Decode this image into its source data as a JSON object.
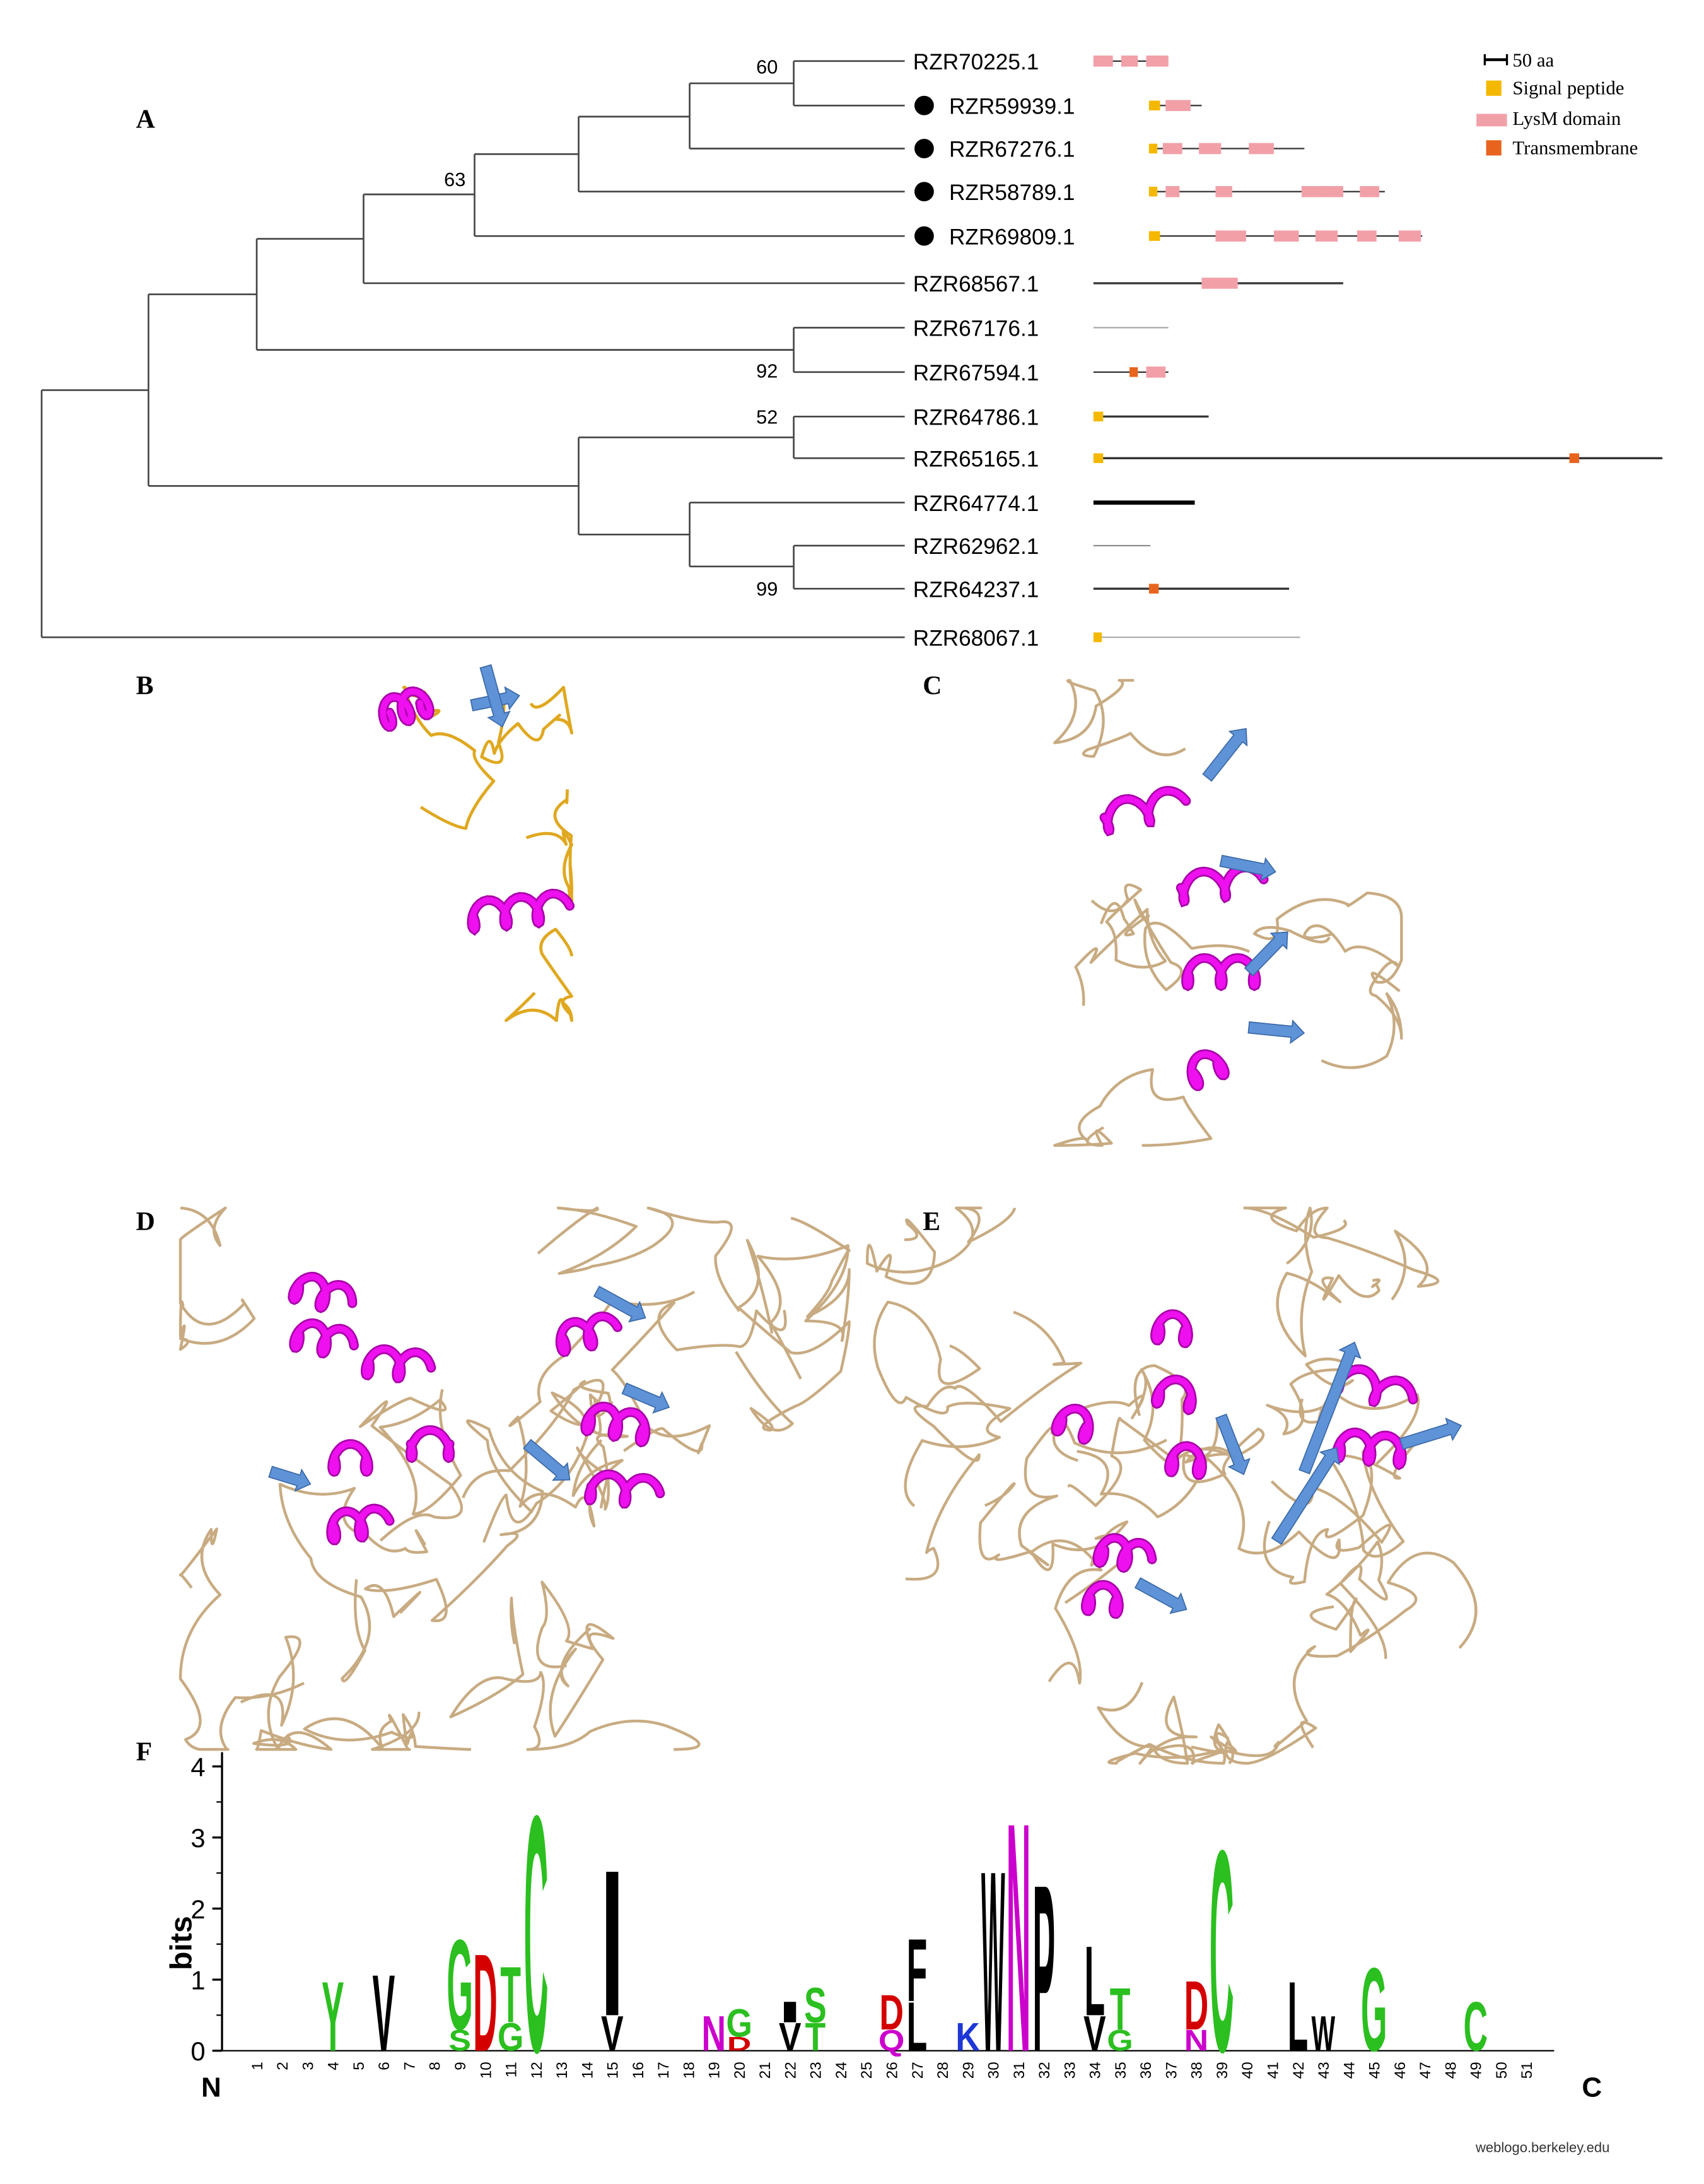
{
  "panels": {
    "a": "A",
    "b": "B",
    "c": "C",
    "d": "D",
    "e": "E",
    "f": "F"
  },
  "tree": {
    "leaves": [
      {
        "label": "RZR70225.1",
        "marked": false
      },
      {
        "label": "RZR59939.1",
        "marked": true
      },
      {
        "label": "RZR67276.1",
        "marked": true
      },
      {
        "label": "RZR58789.1",
        "marked": true
      },
      {
        "label": "RZR69809.1",
        "marked": true
      },
      {
        "label": "RZR68567.1",
        "marked": false
      },
      {
        "label": "RZR67176.1",
        "marked": false
      },
      {
        "label": "RZR67594.1",
        "marked": false
      },
      {
        "label": "RZR64786.1",
        "marked": false
      },
      {
        "label": "RZR65165.1",
        "marked": false
      },
      {
        "label": "RZR64774.1",
        "marked": false
      },
      {
        "label": "RZR62962.1",
        "marked": false
      },
      {
        "label": "RZR64237.1",
        "marked": false
      },
      {
        "label": "RZR68067.1",
        "marked": false
      }
    ],
    "bootstrap": [
      60,
      63,
      92,
      52,
      99
    ]
  },
  "legend": {
    "scale": "50 aa",
    "items": [
      "Signal peptide",
      "LysM domain",
      "Transmembrane"
    ]
  },
  "logo": {
    "ylabel": "bits",
    "ylim": [
      0,
      4.2
    ],
    "yticks": [
      0,
      1,
      2,
      3,
      4
    ],
    "positions": [
      1,
      2,
      3,
      4,
      5,
      6,
      7,
      8,
      9,
      10,
      11,
      12,
      13,
      14,
      15,
      16,
      17,
      18,
      19,
      20,
      21,
      22,
      23,
      24,
      25,
      26,
      27,
      28,
      29,
      30,
      31,
      32,
      33,
      34,
      35,
      36,
      37,
      38,
      39,
      40,
      41,
      42,
      43,
      44,
      45,
      46,
      47,
      48,
      49,
      50,
      51
    ],
    "n_label": "N",
    "c_label": "C",
    "credit": "weblogo.berkeley.edu",
    "columns": [
      {
        "position": 4,
        "letters": [
          {
            "letter": "Y",
            "bits": 1.0,
            "color": "#2bbf1f"
          }
        ]
      },
      {
        "position": 6,
        "letters": [
          {
            "letter": "V",
            "bits": 1.1,
            "color": "#000000"
          }
        ]
      },
      {
        "position": 9,
        "letters": [
          {
            "letter": "S",
            "bits": 0.3,
            "color": "#2bbf1f"
          },
          {
            "letter": "G",
            "bits": 1.3,
            "color": "#2bbf1f"
          }
        ]
      },
      {
        "position": 10,
        "letters": [
          {
            "letter": "D",
            "bits": 1.4,
            "color": "#d40000"
          }
        ]
      },
      {
        "position": 11,
        "letters": [
          {
            "letter": "G",
            "bits": 0.4,
            "color": "#2bbf1f"
          },
          {
            "letter": "T",
            "bits": 0.8,
            "color": "#2bbf1f"
          }
        ]
      },
      {
        "position": 12,
        "letters": [
          {
            "letter": "C",
            "bits": 3.4,
            "color": "#2bbf1f"
          }
        ]
      },
      {
        "position": 15,
        "letters": [
          {
            "letter": "V",
            "bits": 0.5,
            "color": "#000000"
          },
          {
            "letter": "I",
            "bits": 2.1,
            "color": "#000000"
          }
        ]
      },
      {
        "position": 19,
        "letters": [
          {
            "letter": "N",
            "bits": 0.5,
            "color": "#cc00cc"
          }
        ]
      },
      {
        "position": 20,
        "letters": [
          {
            "letter": "D",
            "bits": 0.2,
            "color": "#d40000"
          },
          {
            "letter": "G",
            "bits": 0.4,
            "color": "#2bbf1f"
          }
        ]
      },
      {
        "position": 22,
        "letters": [
          {
            "letter": "V",
            "bits": 0.4,
            "color": "#000000"
          },
          {
            "letter": "I",
            "bits": 0.3,
            "color": "#000000"
          }
        ]
      },
      {
        "position": 23,
        "letters": [
          {
            "letter": "T",
            "bits": 0.4,
            "color": "#2bbf1f"
          },
          {
            "letter": "S",
            "bits": 0.5,
            "color": "#2bbf1f"
          }
        ]
      },
      {
        "position": 26,
        "letters": [
          {
            "letter": "Q",
            "bits": 0.3,
            "color": "#cc00cc"
          },
          {
            "letter": "D",
            "bits": 0.5,
            "color": "#d40000"
          }
        ]
      },
      {
        "position": 27,
        "letters": [
          {
            "letter": "L",
            "bits": 0.7,
            "color": "#000000"
          },
          {
            "letter": "F",
            "bits": 0.9,
            "color": "#000000"
          }
        ]
      },
      {
        "position": 29,
        "letters": [
          {
            "letter": "K",
            "bits": 0.4,
            "color": "#1f37d6"
          }
        ]
      },
      {
        "position": 30,
        "letters": [
          {
            "letter": "W",
            "bits": 2.6,
            "color": "#000000"
          }
        ]
      },
      {
        "position": 31,
        "letters": [
          {
            "letter": "N",
            "bits": 3.3,
            "color": "#cc00cc"
          }
        ]
      },
      {
        "position": 32,
        "letters": [
          {
            "letter": "P",
            "bits": 2.4,
            "color": "#000000"
          }
        ]
      },
      {
        "position": 34,
        "letters": [
          {
            "letter": "V",
            "bits": 0.5,
            "color": "#000000"
          },
          {
            "letter": "L",
            "bits": 1.0,
            "color": "#000000"
          }
        ]
      },
      {
        "position": 35,
        "letters": [
          {
            "letter": "G",
            "bits": 0.3,
            "color": "#2bbf1f"
          },
          {
            "letter": "T",
            "bits": 0.6,
            "color": "#2bbf1f"
          }
        ]
      },
      {
        "position": 38,
        "letters": [
          {
            "letter": "N",
            "bits": 0.3,
            "color": "#cc00cc"
          },
          {
            "letter": "D",
            "bits": 0.7,
            "color": "#d40000"
          }
        ]
      },
      {
        "position": 39,
        "letters": [
          {
            "letter": "C",
            "bits": 2.9,
            "color": "#2bbf1f"
          }
        ]
      },
      {
        "position": 42,
        "letters": [
          {
            "letter": "L",
            "bits": 1.0,
            "color": "#000000"
          }
        ]
      },
      {
        "position": 43,
        "letters": [
          {
            "letter": "W",
            "bits": 0.5,
            "color": "#000000"
          }
        ]
      },
      {
        "position": 45,
        "letters": [
          {
            "letter": "G",
            "bits": 1.2,
            "color": "#2bbf1f"
          }
        ]
      },
      {
        "position": 49,
        "letters": [
          {
            "letter": "C",
            "bits": 0.7,
            "color": "#2bbf1f"
          }
        ]
      }
    ]
  }
}
